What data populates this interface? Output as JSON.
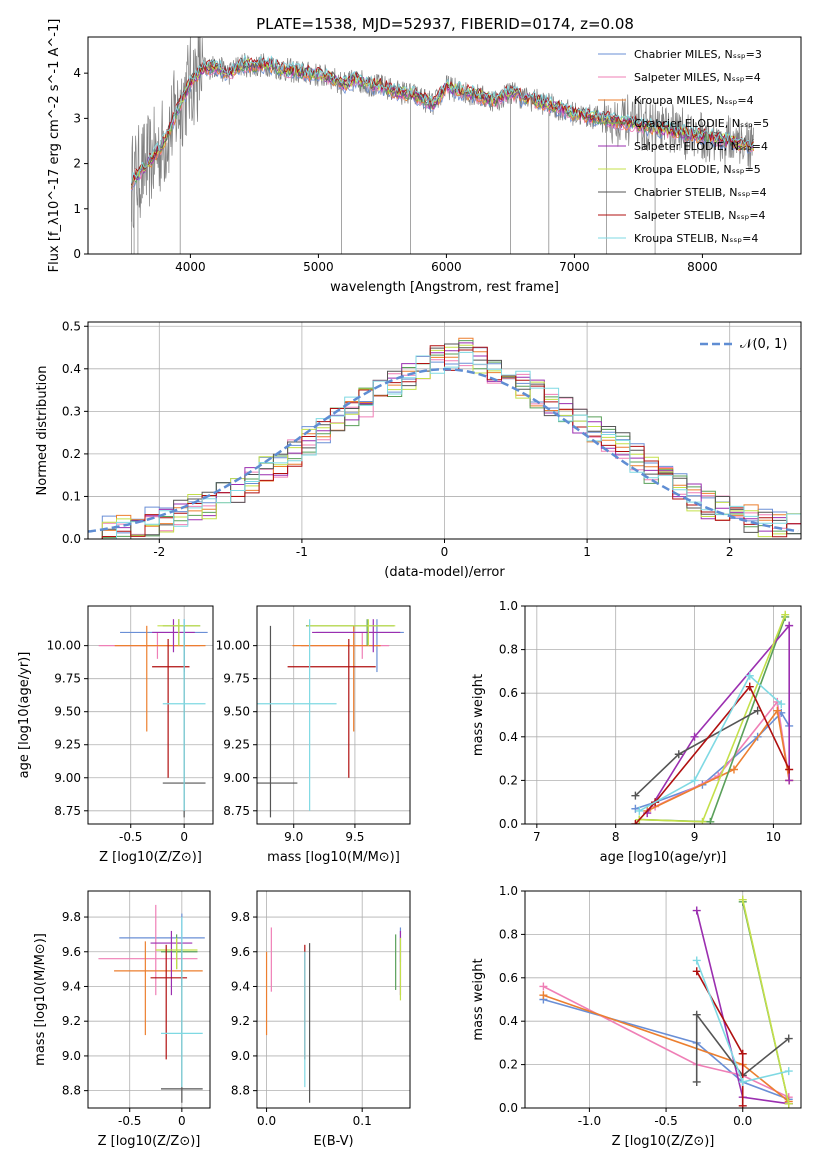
{
  "title": "PLATE=1538, MJD=52937, FIBERID=0174, z=0.08",
  "colors": {
    "chabrier_miles": "#6a8fd6",
    "salpeter_miles": "#ef7fb6",
    "kroupa_miles": "#ec7f2f",
    "chabrier_elodie": "#5aa05a",
    "salpeter_elodie": "#9b2fb0",
    "kroupa_elodie": "#c4e04a",
    "chabrier_stelib": "#555555",
    "salpeter_stelib": "#b01010",
    "kroupa_stelib": "#7fd9e3",
    "data": "#7f7f7f",
    "normal": "#5f8dd3"
  },
  "chart_data": [
    {
      "type": "line",
      "xlabel": "wavelength [Angstrom, rest frame]",
      "ylabel": "Flux [f_λ10^-17 erg cm^-2 s^-1 A^-1]",
      "xlim": [
        3200,
        8770
      ],
      "ylim": [
        0,
        4.8
      ],
      "xticks": [
        4000,
        5000,
        6000,
        7000,
        8000
      ],
      "yticks": [
        0,
        1,
        2,
        3,
        4
      ],
      "legend_position": "right",
      "legend": [
        {
          "text": "Chabrier MILES, N_SSP=3",
          "color_key": "chabrier_miles"
        },
        {
          "text": "Salpeter MILES, N_SSP=4",
          "color_key": "salpeter_miles"
        },
        {
          "text": "Kroupa MILES, N_SSP=4",
          "color_key": "kroupa_miles"
        },
        {
          "text": "Chabrier ELODIE, N_SSP=5",
          "color_key": "chabrier_elodie"
        },
        {
          "text": "Salpeter ELODIE, N_SSP=4",
          "color_key": "salpeter_elodie"
        },
        {
          "text": "Kroupa ELODIE, N_SSP=5",
          "color_key": "kroupa_elodie"
        },
        {
          "text": "Chabrier STELIB, N_SSP=4",
          "color_key": "chabrier_stelib"
        },
        {
          "text": "Salpeter STELIB, N_SSP=4",
          "color_key": "salpeter_stelib"
        },
        {
          "text": "Kroupa STELIB, N_SSP=4",
          "color_key": "kroupa_stelib"
        }
      ],
      "continuum": [
        [
          3540,
          1.6
        ],
        [
          3600,
          1.8
        ],
        [
          3700,
          2.1
        ],
        [
          3800,
          2.5
        ],
        [
          3900,
          3.2
        ],
        [
          4000,
          3.8
        ],
        [
          4100,
          4.1
        ],
        [
          4200,
          4.15
        ],
        [
          4300,
          4.0
        ],
        [
          4400,
          4.2
        ],
        [
          4500,
          4.15
        ],
        [
          4600,
          4.2
        ],
        [
          4700,
          4.1
        ],
        [
          4800,
          4.05
        ],
        [
          4900,
          4.0
        ],
        [
          5000,
          3.95
        ],
        [
          5100,
          3.9
        ],
        [
          5200,
          3.75
        ],
        [
          5300,
          3.85
        ],
        [
          5400,
          3.75
        ],
        [
          5500,
          3.7
        ],
        [
          5600,
          3.6
        ],
        [
          5700,
          3.55
        ],
        [
          5800,
          3.45
        ],
        [
          5900,
          3.3
        ],
        [
          6000,
          3.7
        ],
        [
          6100,
          3.6
        ],
        [
          6200,
          3.55
        ],
        [
          6300,
          3.45
        ],
        [
          6400,
          3.4
        ],
        [
          6500,
          3.6
        ],
        [
          6600,
          3.45
        ],
        [
          6700,
          3.4
        ],
        [
          6800,
          3.3
        ],
        [
          6900,
          3.2
        ],
        [
          7000,
          3.1
        ],
        [
          7100,
          3.05
        ],
        [
          7200,
          3.0
        ],
        [
          7300,
          2.95
        ],
        [
          7400,
          2.9
        ],
        [
          7500,
          2.85
        ],
        [
          7600,
          2.8
        ],
        [
          7700,
          2.75
        ],
        [
          7800,
          2.7
        ],
        [
          7900,
          2.65
        ],
        [
          8000,
          2.6
        ],
        [
          8100,
          2.55
        ],
        [
          8200,
          2.5
        ],
        [
          8300,
          2.45
        ],
        [
          8400,
          2.4
        ]
      ]
    },
    {
      "type": "bar",
      "xlabel": "(data-model)/error",
      "ylabel": "Normed distribution",
      "xlim": [
        -2.5,
        2.5
      ],
      "ylim": [
        0,
        0.51
      ],
      "xticks": [
        -2,
        -1,
        0,
        1,
        2
      ],
      "yticks": [
        0.0,
        0.1,
        0.2,
        0.3,
        0.4,
        0.5
      ],
      "legend": [
        {
          "text": "𝒩(0, 1)",
          "color_key": "normal"
        }
      ],
      "bin_width": 0.1,
      "series_shape": [
        0.02,
        0.02,
        0.03,
        0.04,
        0.04,
        0.05,
        0.06,
        0.07,
        0.08,
        0.1,
        0.12,
        0.14,
        0.16,
        0.18,
        0.2,
        0.23,
        0.26,
        0.28,
        0.3,
        0.32,
        0.34,
        0.36,
        0.38,
        0.4,
        0.42,
        0.43,
        0.44,
        0.42,
        0.4,
        0.38,
        0.36,
        0.34,
        0.32,
        0.3,
        0.28,
        0.26,
        0.24,
        0.22,
        0.19,
        0.16,
        0.14,
        0.12,
        0.1,
        0.08,
        0.07,
        0.06,
        0.05,
        0.04,
        0.04,
        0.03
      ]
    },
    {
      "type": "scatter",
      "xlabel": "Z [log10(Z/Z⊙)]",
      "ylabel": "age [log10(age/yr)]",
      "xlim": [
        -0.9,
        0.27
      ],
      "ylim": [
        8.65,
        10.3
      ],
      "xticks": [
        -0.5,
        0.0
      ],
      "yticks": [
        8.75,
        9.0,
        9.25,
        9.5,
        9.75,
        10.0
      ]
    },
    {
      "type": "scatter",
      "xlabel": "mass [log10(M/M⊙)]",
      "xlim": [
        8.7,
        9.95
      ],
      "ylim": [
        8.65,
        10.3
      ],
      "xticks": [
        9.0,
        9.5
      ],
      "yticks": [
        8.75,
        9.0,
        9.25,
        9.5,
        9.75,
        10.0
      ]
    },
    {
      "type": "line",
      "xlabel": "age [log10(age/yr)]",
      "ylabel": "mass weight",
      "xlim": [
        6.85,
        10.35
      ],
      "ylim": [
        0,
        1
      ],
      "xticks": [
        7,
        8,
        9,
        10
      ],
      "yticks": [
        0.0,
        0.2,
        0.4,
        0.6,
        0.8,
        1.0
      ]
    },
    {
      "type": "scatter",
      "xlabel": "Z [log10(Z/Z⊙)]",
      "ylabel": "mass [log10(M/M⊙)]",
      "xlim": [
        -0.9,
        0.27
      ],
      "ylim": [
        8.7,
        9.95
      ],
      "xticks": [
        -0.5,
        0.0
      ],
      "yticks": [
        8.8,
        9.0,
        9.2,
        9.4,
        9.6,
        9.8
      ]
    },
    {
      "type": "scatter",
      "xlabel": "E(B-V)",
      "xlim": [
        -0.01,
        0.15
      ],
      "ylim": [
        8.7,
        9.95
      ],
      "xticks": [
        0.0,
        0.1
      ],
      "yticks": [
        8.8,
        9.0,
        9.2,
        9.4,
        9.6,
        9.8
      ]
    },
    {
      "type": "line",
      "xlabel": "Z [log10(Z/Z⊙)]",
      "ylabel": "mass weight",
      "xlim": [
        -1.42,
        0.38
      ],
      "ylim": [
        0,
        1
      ],
      "xticks": [
        -1.0,
        -0.5,
        0.0
      ],
      "yticks": [
        0.0,
        0.2,
        0.4,
        0.6,
        0.8,
        1.0
      ]
    }
  ],
  "models": [
    {
      "key": "chabrier_miles",
      "Z": 0.0,
      "Zlo": -0.6,
      "Zhi": 0.22,
      "age": 10.1,
      "alo": 9.8,
      "ahi": 10.2,
      "mass": 9.68,
      "mlo": 9.4,
      "mhi": 9.82,
      "ebv": 0.14,
      "elo": 9.54,
      "ehi": 9.74,
      "ages": [
        [
          8.25,
          0.07
        ],
        [
          8.5,
          0.1
        ],
        [
          9.1,
          0.18
        ],
        [
          9.8,
          0.4
        ],
        [
          10.1,
          0.51
        ],
        [
          10.2,
          0.45
        ]
      ],
      "Zw": [
        [
          -1.3,
          0.5
        ],
        [
          -0.3,
          0.3
        ],
        [
          0.0,
          0.12
        ],
        [
          0.3,
          0.04
        ]
      ]
    },
    {
      "key": "salpeter_miles",
      "Z": -0.25,
      "Zlo": -0.8,
      "Zhi": 0.15,
      "age": 10.0,
      "alo": 9.9,
      "ahi": 10.1,
      "mass": 9.56,
      "mlo": 9.35,
      "mhi": 9.87,
      "ebv": 0.005,
      "elo": 9.37,
      "ehi": 9.74,
      "ages": [
        [
          8.5,
          0.08
        ],
        [
          9.3,
          0.22
        ],
        [
          10.05,
          0.56
        ],
        [
          10.2,
          0.2
        ]
      ],
      "Zw": [
        [
          -1.3,
          0.56
        ],
        [
          -0.3,
          0.2
        ],
        [
          0.0,
          0.15
        ],
        [
          0.3,
          0.05
        ]
      ]
    },
    {
      "key": "kroupa_miles",
      "Z": -0.35,
      "Zlo": -0.65,
      "Zhi": 0.2,
      "age": 10.0,
      "alo": 9.35,
      "ahi": 10.15,
      "mass": 9.49,
      "mlo": 9.12,
      "mhi": 9.66,
      "ebv": 0.0,
      "elo": 9.12,
      "ehi": 9.6,
      "ages": [
        [
          8.4,
          0.06
        ],
        [
          9.5,
          0.25
        ],
        [
          10.05,
          0.52
        ],
        [
          10.2,
          0.2
        ]
      ],
      "Zw": [
        [
          -1.3,
          0.52
        ],
        [
          0.0,
          0.2
        ],
        [
          0.3,
          0.03
        ]
      ]
    },
    {
      "key": "chabrier_elodie",
      "Z": -0.05,
      "Zlo": -0.2,
      "Zhi": 0.15,
      "age": 10.15,
      "alo": 10.0,
      "ahi": 10.2,
      "mass": 9.6,
      "mlo": 9.5,
      "mhi": 9.7,
      "ebv": 0.135,
      "elo": 9.38,
      "ehi": 9.7,
      "ages": [
        [
          8.3,
          0.02
        ],
        [
          9.2,
          0.01
        ],
        [
          10.15,
          0.95
        ]
      ],
      "Zw": [
        [
          0.0,
          0.95
        ],
        [
          0.3,
          0.02
        ]
      ]
    },
    {
      "key": "salpeter_elodie",
      "Z": -0.1,
      "Zlo": -0.3,
      "Zhi": 0.1,
      "age": 10.1,
      "alo": 9.95,
      "ahi": 10.2,
      "mass": 9.65,
      "mlo": 9.35,
      "mhi": 9.72,
      "ebv": 0.14,
      "elo": 9.35,
      "ehi": 9.72,
      "ages": [
        [
          8.4,
          0.05
        ],
        [
          9.0,
          0.4
        ],
        [
          10.2,
          0.91
        ],
        [
          10.2,
          0.2
        ]
      ],
      "Zw": [
        [
          -0.3,
          0.91
        ],
        [
          0.0,
          0.05
        ],
        [
          0.3,
          0.02
        ]
      ]
    },
    {
      "key": "kroupa_elodie",
      "Z": -0.05,
      "Zlo": -0.25,
      "Zhi": 0.15,
      "age": 10.15,
      "alo": 10.0,
      "ahi": 10.2,
      "mass": 9.61,
      "mlo": 9.5,
      "mhi": 9.68,
      "ebv": 0.14,
      "elo": 9.32,
      "ehi": 9.68,
      "ages": [
        [
          8.3,
          0.02
        ],
        [
          9.1,
          0.01
        ],
        [
          10.15,
          0.96
        ]
      ],
      "Zw": [
        [
          0.0,
          0.96
        ],
        [
          0.3,
          0.02
        ]
      ]
    },
    {
      "key": "chabrier_stelib",
      "Z": 0.0,
      "Zlo": -0.2,
      "Zhi": 0.2,
      "age": 8.96,
      "alo": 8.7,
      "ahi": 10.15,
      "mass": 8.81,
      "mlo": 8.73,
      "mhi": 9.65,
      "ebv": 0.045,
      "elo": 8.73,
      "ehi": 9.65,
      "ages": [
        [
          8.25,
          0.13
        ],
        [
          8.8,
          0.32
        ],
        [
          9.8,
          0.52
        ]
      ],
      "Zw": [
        [
          -0.3,
          0.12
        ],
        [
          -0.3,
          0.43
        ],
        [
          0.0,
          0.15
        ],
        [
          0.3,
          0.32
        ]
      ]
    },
    {
      "key": "salpeter_stelib",
      "Z": -0.15,
      "Zlo": -0.3,
      "Zhi": 0.05,
      "age": 9.84,
      "alo": 9.0,
      "ahi": 10.05,
      "mass": 9.45,
      "mlo": 8.98,
      "mhi": 9.64,
      "ebv": 0.04,
      "elo": 8.98,
      "ehi": 9.64,
      "ages": [
        [
          8.25,
          0.0
        ],
        [
          8.5,
          0.1
        ],
        [
          9.7,
          0.63
        ],
        [
          10.2,
          0.25
        ]
      ],
      "Zw": [
        [
          -0.3,
          0.63
        ],
        [
          0.0,
          0.25
        ],
        [
          0.0,
          0.01
        ]
      ]
    },
    {
      "key": "kroupa_stelib",
      "Z": 0.0,
      "Zlo": -0.2,
      "Zhi": 0.2,
      "age": 9.56,
      "alo": 8.75,
      "ahi": 10.2,
      "mass": 9.13,
      "mlo": 8.82,
      "mhi": 9.8,
      "ebv": 0.04,
      "elo": 8.82,
      "ehi": 9.6,
      "ages": [
        [
          8.3,
          0.06
        ],
        [
          9.0,
          0.2
        ],
        [
          9.7,
          0.68
        ],
        [
          10.1,
          0.55
        ]
      ],
      "Zw": [
        [
          -0.3,
          0.68
        ],
        [
          0.0,
          0.12
        ],
        [
          0.3,
          0.17
        ]
      ]
    }
  ]
}
